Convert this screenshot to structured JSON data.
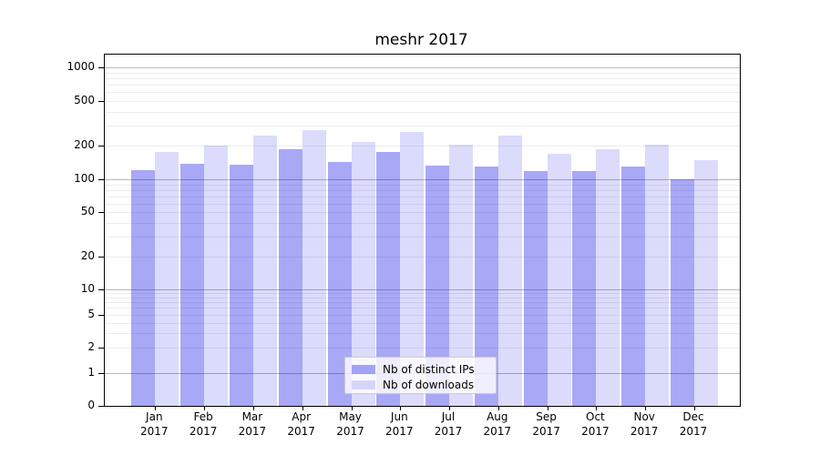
{
  "title": "meshr 2017",
  "chart_data": {
    "type": "bar",
    "title": "meshr 2017",
    "categories": [
      "Jan 2017",
      "Feb 2017",
      "Mar 2017",
      "Apr 2017",
      "May 2017",
      "Jun 2017",
      "Jul 2017",
      "Aug 2017",
      "Sep 2017",
      "Oct 2017",
      "Nov 2017",
      "Dec 2017"
    ],
    "series": [
      {
        "name": "Nb of distinct IPs",
        "values": [
          120,
          137,
          136,
          187,
          143,
          176,
          133,
          130,
          119,
          119,
          131,
          100
        ]
      },
      {
        "name": "Nb of downloads",
        "values": [
          175,
          200,
          248,
          277,
          215,
          265,
          202,
          247,
          170,
          186,
          205,
          148
        ]
      }
    ],
    "yscale": "symlog",
    "ytick_labels": [
      "1000",
      "500",
      "200",
      "100",
      "50",
      "20",
      "10",
      "5",
      "2",
      "1",
      "0"
    ],
    "ytick_values": [
      1000,
      500,
      200,
      100,
      50,
      20,
      10,
      5,
      2,
      1,
      0
    ],
    "ylim": [
      0,
      1259
    ],
    "grid": "horizontal log major+minor",
    "legend_position": "lower center"
  },
  "legend": {
    "items": [
      {
        "label": "Nb of distinct IPs"
      },
      {
        "label": "Nb of downloads"
      }
    ]
  },
  "colors": {
    "ips_bar": "rgba(0,0,230,0.34)",
    "downloads_bar": "rgba(0,0,230,0.14)",
    "grid_major": "#b8b8b8",
    "grid_minor": "#ececec",
    "axis": "#000000",
    "text": "#000000"
  }
}
